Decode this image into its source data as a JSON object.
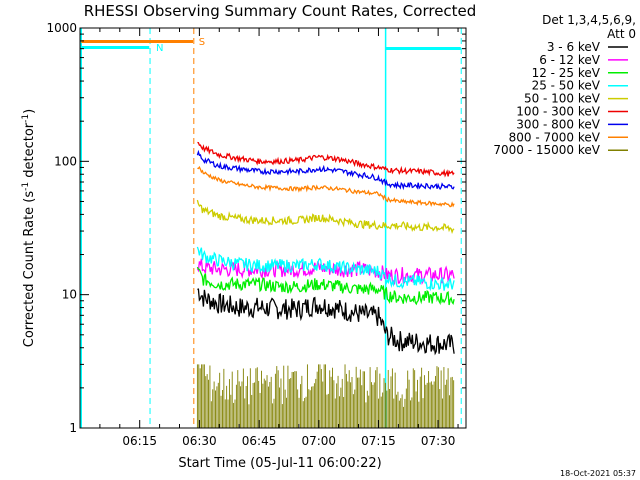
{
  "chart_data": {
    "type": "line",
    "title": "RHESSI Observing Summary Count Rates, Corrected",
    "xlabel": "Start Time (05-Jul-11 06:00:22)",
    "ylabel_main": "Corrected Count Rate (s",
    "ylabel_sup1": "-1",
    "ylabel_mid": " detector",
    "ylabel_sup2": "-1",
    "ylabel_end": ")",
    "yscale": "log",
    "ylim": [
      1,
      1000
    ],
    "xlim_minutes": [
      0,
      97
    ],
    "y_ticks": [
      {
        "value": 1,
        "label": "1"
      },
      {
        "value": 10,
        "label": "10"
      },
      {
        "value": 100,
        "label": "100"
      },
      {
        "value": 1000,
        "label": "1000"
      }
    ],
    "x_ticks": [
      {
        "value": 15,
        "label": "06:15"
      },
      {
        "value": 30,
        "label": "06:30"
      },
      {
        "value": 45,
        "label": "06:45"
      },
      {
        "value": 60,
        "label": "07:00"
      },
      {
        "value": 75,
        "label": "07:15"
      },
      {
        "value": 90,
        "label": "07:30"
      }
    ],
    "legend_header": [
      "Det 1,3,4,5,6,9,",
      "Att 0"
    ],
    "legend_position": "right",
    "series": [
      {
        "name": "3 - 6 keV",
        "color": "#000000",
        "x": [
          29.5,
          31,
          35,
          40,
          45,
          50,
          55,
          60,
          65,
          70,
          75,
          77,
          80,
          85,
          90,
          94
        ],
        "values": [
          11,
          9.5,
          8.5,
          8,
          8,
          7.8,
          7.8,
          8.5,
          7.8,
          7.2,
          6.8,
          5,
          4.5,
          4.4,
          4.3,
          4.2
        ]
      },
      {
        "name": "6 - 12 keV",
        "color": "#ff00ff",
        "x": [
          29.5,
          31,
          35,
          40,
          45,
          50,
          55,
          60,
          65,
          70,
          75,
          77,
          80,
          85,
          90,
          94
        ],
        "values": [
          17,
          16,
          15.5,
          15.5,
          15.5,
          15.5,
          15.5,
          16,
          15.5,
          15.5,
          15,
          14,
          14,
          14,
          14,
          14
        ]
      },
      {
        "name": "12 - 25 keV",
        "color": "#00ee00",
        "x": [
          29.5,
          31,
          35,
          40,
          45,
          50,
          55,
          60,
          65,
          70,
          75,
          77,
          80,
          85,
          90,
          94
        ],
        "values": [
          15,
          13,
          12,
          12,
          12,
          11.5,
          11.5,
          12,
          11.5,
          11,
          11,
          10,
          9.5,
          9.5,
          9.5,
          9.3
        ]
      },
      {
        "name": "25 - 50 keV",
        "color": "#00ffff",
        "x": [
          29.5,
          31,
          35,
          40,
          45,
          50,
          55,
          60,
          65,
          70,
          75,
          77,
          80,
          85,
          90,
          94
        ],
        "values": [
          22,
          19.5,
          18,
          17,
          16.5,
          16.5,
          16.5,
          17,
          16,
          15.5,
          15,
          13.5,
          12.5,
          12.5,
          12,
          12
        ]
      },
      {
        "name": "50 - 100 keV",
        "color": "#cccc00",
        "x": [
          29.5,
          31,
          35,
          40,
          45,
          50,
          55,
          60,
          65,
          70,
          75,
          77,
          80,
          85,
          90,
          94
        ],
        "values": [
          48,
          43,
          39,
          37,
          36,
          36,
          36,
          38,
          36,
          34,
          33,
          33,
          33,
          32,
          32,
          31
        ]
      },
      {
        "name": "100 - 300 keV",
        "color": "#ee0000",
        "x": [
          29.5,
          31,
          35,
          40,
          45,
          50,
          55,
          60,
          65,
          70,
          75,
          77,
          80,
          85,
          90,
          94
        ],
        "values": [
          140,
          125,
          112,
          105,
          100,
          100,
          102,
          108,
          104,
          96,
          90,
          87,
          85,
          84,
          82,
          80
        ]
      },
      {
        "name": "300 - 800 keV",
        "color": "#0000ee",
        "x": [
          29.5,
          31,
          35,
          40,
          45,
          50,
          55,
          60,
          65,
          70,
          75,
          77,
          80,
          85,
          90,
          94
        ],
        "values": [
          115,
          103,
          92,
          88,
          84,
          84,
          84,
          88,
          85,
          80,
          75,
          68,
          66,
          66,
          65,
          64
        ]
      },
      {
        "name": "800 - 7000 keV",
        "color": "#ff8000",
        "x": [
          29.5,
          31,
          35,
          40,
          45,
          50,
          55,
          60,
          65,
          70,
          75,
          77,
          80,
          85,
          90,
          94
        ],
        "values": [
          92,
          82,
          72,
          67,
          64,
          63,
          62,
          64,
          62,
          59,
          57,
          52,
          50,
          49,
          48,
          47
        ]
      },
      {
        "name": "7000 - 15000 keV",
        "color": "#808000",
        "x": [
          29.5,
          32,
          40,
          50,
          60,
          70,
          80,
          90,
          94
        ],
        "values": [
          2.6,
          1.5,
          1.4,
          1.5,
          1.6,
          1.5,
          1.4,
          1.5,
          1.5
        ]
      }
    ],
    "annotations": [
      {
        "label": "N",
        "color": "#00ffff"
      },
      {
        "label": "S",
        "color": "#ff8000"
      }
    ]
  },
  "footer": {
    "timestamp": "18-Oct-2021 05:37"
  }
}
